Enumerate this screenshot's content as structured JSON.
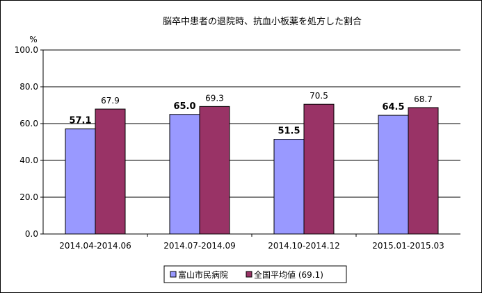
{
  "chart_data": {
    "type": "bar",
    "title": "脳卒中患者の退院時、抗血小板薬を処方した割合",
    "yunit": "%",
    "ylim": [
      0,
      100
    ],
    "yticks": [
      "0.0",
      "20.0",
      "40.0",
      "60.0",
      "80.0",
      "100.0"
    ],
    "grid": true,
    "legend_position": "bottom",
    "categories": [
      "2014.04-2014.06",
      "2014.07-2014.09",
      "2014.10-2014.12",
      "2015.01-2015.03"
    ],
    "series": [
      {
        "name": "富山市民病院",
        "color": "#9999ff",
        "values": [
          57.1,
          65.0,
          51.5,
          64.5
        ],
        "labels": [
          "57.1",
          "65.0",
          "51.5",
          "64.5"
        ]
      },
      {
        "name": "全国平均値 (69.1)",
        "color": "#993366",
        "values": [
          67.9,
          69.3,
          70.5,
          68.7
        ],
        "labels": [
          "67.9",
          "69.3",
          "70.5",
          "68.7"
        ]
      }
    ]
  }
}
